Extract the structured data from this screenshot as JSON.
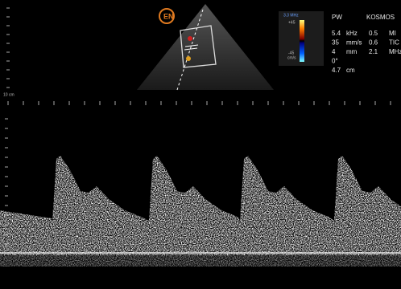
{
  "device": {
    "mode": "PW",
    "brand": "KOSMOS"
  },
  "colorbar": {
    "frequency": "3.3 MHz",
    "max": "+45",
    "min": "-45",
    "unit": "cm/s"
  },
  "parameters": [
    [
      "5.4",
      "kHz",
      "0.5",
      "MI"
    ],
    [
      "35",
      "mm/s",
      "0.6",
      "TIC"
    ],
    [
      "4",
      "mm",
      "2.1",
      "MHz"
    ],
    [
      "0°"
    ],
    [
      "4.7",
      "cm"
    ]
  ],
  "depth_label": "10 cm"
}
